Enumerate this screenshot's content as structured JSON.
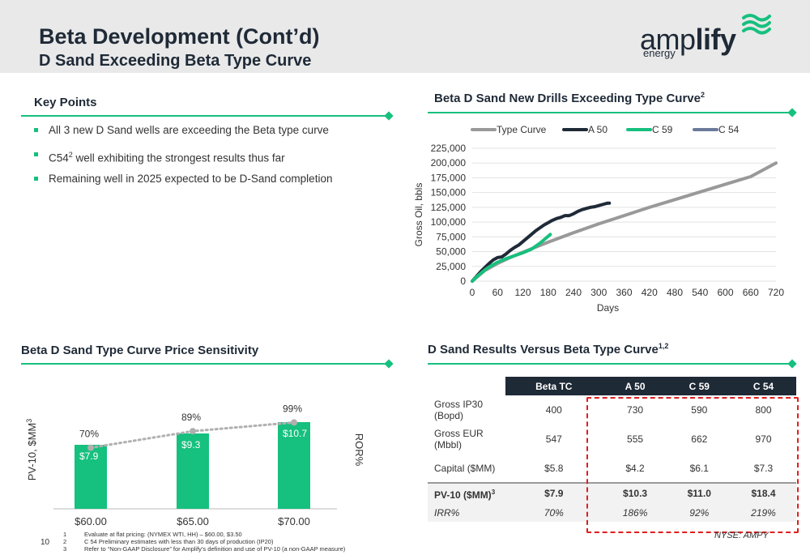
{
  "header": {
    "title": "Beta Development (Cont’d)",
    "subtitle": "D Sand Exceeding Beta Type Curve",
    "logo_text_light": "amp",
    "logo_text_bold": "lify",
    "logo_sub": "energy",
    "logo_icon": "wave-icon"
  },
  "key_points": {
    "title": "Key Points",
    "items": [
      {
        "pre": "All 3 new D Sand wells are exceeding the Beta type curve",
        "sup": "",
        "post": ""
      },
      {
        "pre": "C54",
        "sup": "2",
        "post": " well exhibiting the strongest results thus far"
      },
      {
        "pre": "Remaining well in 2025 expected to be D-Sand completion",
        "sup": "",
        "post": ""
      }
    ]
  },
  "line_chart_section": {
    "title": "Beta D Sand New Drills Exceeding Type Curve",
    "title_sup": "2"
  },
  "bar_chart_section": {
    "title": "Beta D Sand Type Curve Price Sensitivity"
  },
  "table_section": {
    "title": "D Sand Results Versus Beta Type Curve",
    "title_sup": "1,2"
  },
  "colors": {
    "green": "#16c07e",
    "navy": "#1f2a37",
    "grey_curve": "#999999",
    "blue_grey": "#6b7a99",
    "red_dash": "#e01e1e"
  },
  "chart_data": [
    {
      "type": "line",
      "xlabel": "Days",
      "ylabel": "Gross Oil, bbls",
      "xlim": [
        0,
        720
      ],
      "ylim": [
        0,
        225000
      ],
      "xticks": [
        0,
        60,
        120,
        180,
        240,
        300,
        360,
        420,
        480,
        540,
        600,
        660,
        720
      ],
      "yticks": [
        0,
        25000,
        50000,
        75000,
        100000,
        125000,
        150000,
        175000,
        200000,
        225000
      ],
      "ytick_labels": [
        "0",
        "25,000",
        "50,000",
        "75,000",
        "100,000",
        "125,000",
        "150,000",
        "175,000",
        "200,000",
        "225,000"
      ],
      "legend_position": "top",
      "series": [
        {
          "name": "Type Curve",
          "color": "#999999",
          "width": 4,
          "x": [
            0,
            30,
            60,
            90,
            120,
            180,
            240,
            300,
            360,
            420,
            480,
            540,
            600,
            660,
            720
          ],
          "y": [
            0,
            18000,
            30000,
            40000,
            49000,
            66000,
            82000,
            97000,
            111000,
            125000,
            138000,
            151000,
            164000,
            177000,
            200000
          ]
        },
        {
          "name": "A 50",
          "color": "#1f2a37",
          "width": 4,
          "x": [
            0,
            10,
            20,
            30,
            40,
            50,
            60,
            70,
            80,
            90,
            100,
            110,
            120,
            130,
            140,
            150,
            160,
            170,
            180,
            190,
            200,
            210,
            220,
            230,
            240,
            250,
            260,
            270,
            280,
            290,
            300,
            310,
            320,
            325
          ],
          "y": [
            0,
            8000,
            16000,
            23000,
            30000,
            36000,
            40000,
            41000,
            46000,
            52000,
            57000,
            61000,
            67000,
            73000,
            79000,
            85000,
            90000,
            95000,
            99000,
            103000,
            106000,
            108000,
            111000,
            111000,
            114000,
            118000,
            121000,
            123000,
            125000,
            126000,
            128000,
            130000,
            132000,
            132000
          ]
        },
        {
          "name": "C 59",
          "color": "#16c07e",
          "width": 4,
          "x": [
            0,
            10,
            20,
            30,
            40,
            50,
            60,
            80,
            100,
            120,
            140,
            160,
            170,
            180,
            185
          ],
          "y": [
            0,
            7000,
            13000,
            19000,
            24000,
            28000,
            32000,
            38000,
            43000,
            48000,
            54000,
            64000,
            70000,
            76000,
            79000
          ]
        },
        {
          "name": "C 54",
          "color": "#6b7a99",
          "width": 3,
          "x": [],
          "y": []
        }
      ]
    },
    {
      "type": "bar",
      "ylabel": "PV-10, $MM",
      "ylabel_sup": "3",
      "y2label": "ROR%",
      "categories": [
        "$60.00",
        "$65.00",
        "$70.00"
      ],
      "series": [
        {
          "kind": "bar",
          "values": [
            7.9,
            9.3,
            10.7
          ],
          "labels": [
            "$7.9",
            "$9.3",
            "$10.7"
          ],
          "color": "#16c07e"
        },
        {
          "kind": "dotted-line",
          "values": [
            70,
            89,
            99
          ],
          "labels": [
            "70%",
            "89%",
            "99%"
          ],
          "color": "#b0b0b0"
        }
      ],
      "ylim": [
        0,
        14
      ],
      "y2lim": [
        0,
        130
      ],
      "show_axes_ticks": false
    }
  ],
  "results_table": {
    "columns": [
      "Beta TC",
      "A 50",
      "C 59",
      "C 54"
    ],
    "rows": [
      {
        "label": "Gross IP30 (Bopd)",
        "values": [
          "400",
          "730",
          "590",
          "800"
        ]
      },
      {
        "label": "Gross EUR (Mbbl)",
        "values": [
          "547",
          "555",
          "662",
          "970"
        ]
      },
      {
        "label": "Capital ($MM)",
        "values": [
          "$5.8",
          "$4.2",
          "$6.1",
          "$7.3"
        ]
      }
    ],
    "pv_row": {
      "label": "PV-10 ($MM)",
      "label_sup": "3",
      "values": [
        "$7.9",
        "$10.3",
        "$11.0",
        "$18.4"
      ]
    },
    "irr_row": {
      "label": "IRR%",
      "values": [
        "70%",
        "186%",
        "92%",
        "219%"
      ]
    }
  },
  "footer": {
    "ticker": "NYSE: AMPY",
    "page_number": "10",
    "footnotes": [
      {
        "n": "1",
        "text": "Evaluate at flat pricing: (NYMEX WTI, HH) – $60.00, $3.50"
      },
      {
        "n": "2",
        "text": "C 54 Preliminary estimates with less than 30 days of production (IP20)"
      },
      {
        "n": "3",
        "text": "Refer to “Non-GAAP Disclosure” for Amplify’s definition and use of PV-10 (a non-GAAP measure)"
      }
    ]
  }
}
